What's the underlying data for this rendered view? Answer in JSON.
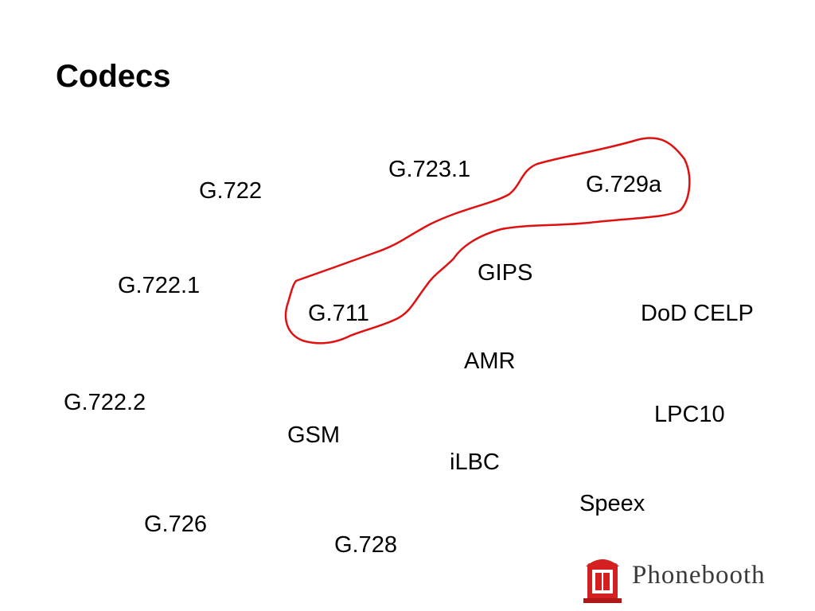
{
  "header": {
    "title": "Codecs"
  },
  "codecs": [
    "G.723.1",
    "G.729a",
    "G.722",
    "GIPS",
    "G.722.1",
    "G.711",
    "DoD CELP",
    "AMR",
    "G.722.2",
    "LPC10",
    "GSM",
    "iLBC",
    "Speex",
    "G.726",
    "G.728"
  ],
  "logo": {
    "text": "Phonebooth"
  }
}
